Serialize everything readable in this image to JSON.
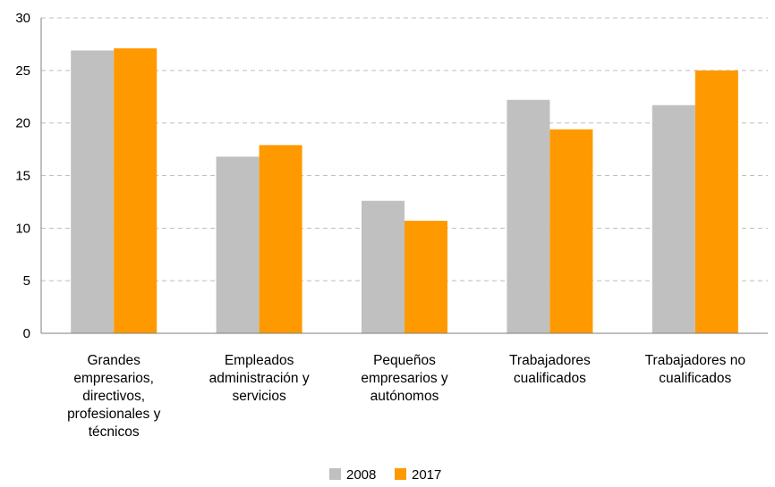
{
  "chart_data": {
    "type": "bar",
    "categories": [
      [
        "Grandes",
        "empresarios,",
        "directivos,",
        "profesionales y",
        "técnicos"
      ],
      [
        "Empleados",
        "administración y",
        "servicios"
      ],
      [
        "Pequeños",
        "empresarios y",
        "autónomos"
      ],
      [
        "Trabajadores",
        "cualificados"
      ],
      [
        "Trabajadores no",
        "cualificados"
      ]
    ],
    "series": [
      {
        "name": "2008",
        "color": "#c0c0c0",
        "values": [
          26.9,
          16.8,
          12.6,
          22.2,
          21.7
        ]
      },
      {
        "name": "2017",
        "color": "#ff9900",
        "values": [
          27.1,
          17.9,
          10.7,
          19.4,
          25.0
        ]
      }
    ],
    "ylim": [
      0,
      30
    ],
    "yticks": [
      0,
      5,
      10,
      15,
      20,
      25,
      30
    ],
    "grid": true,
    "legend_position": "bottom-center",
    "title": "",
    "xlabel": "",
    "ylabel": ""
  }
}
